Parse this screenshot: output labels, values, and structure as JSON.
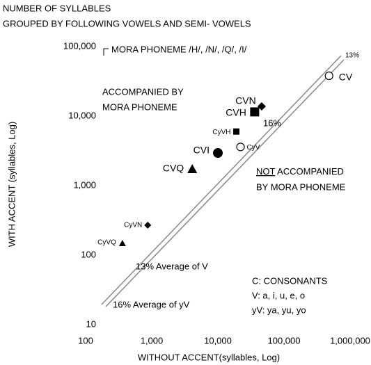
{
  "chart_data": {
    "type": "scatter",
    "title": [
      "NUMBER OF SYLLABLES",
      "GROUPED BY FOLLOWING VOWELS AND SEMI- VOWELS"
    ],
    "x_label": "WITHOUT ACCENT(syllables, Log)",
    "y_label": "WITH ACCENT (syllables, Log)",
    "log_x": true,
    "log_y": true,
    "xlim": [
      100,
      1000000
    ],
    "ylim": [
      10,
      100000
    ],
    "xticks": [
      100,
      {
        "value": 1000,
        "label": "1,000"
      },
      {
        "value": 10000,
        "label": "10,000"
      },
      {
        "value": 100000,
        "label": "100,000"
      },
      {
        "value": 1000000,
        "label": "1,000,000"
      }
    ],
    "yticks": [
      10,
      100,
      {
        "value": 1000,
        "label": "1,000"
      },
      {
        "value": 10000,
        "label": "10,000"
      },
      {
        "value": 100000,
        "label": "100,000"
      }
    ],
    "color": "#000000",
    "points": [
      {
        "label": "CV",
        "x": 480000,
        "y": 38000,
        "marker": "open-circle"
      },
      {
        "label": "CVN",
        "x": 46000,
        "y": 13800,
        "marker": "diamond"
      },
      {
        "label": "CVH",
        "x": 36000,
        "y": 11500,
        "marker": "big-square"
      },
      {
        "label": "CyVH",
        "x": 19000,
        "y": 6000,
        "marker": "square"
      },
      {
        "label": "CyV",
        "x": 22000,
        "y": 3600,
        "marker": "open-circle"
      },
      {
        "label": "CVI",
        "x": 10000,
        "y": 2950,
        "marker": "circle"
      },
      {
        "label": "CVQ",
        "x": 4100,
        "y": 1740,
        "marker": "triangle"
      },
      {
        "label": "CyVN",
        "x": 870,
        "y": 270,
        "marker": "small-diamond"
      },
      {
        "label": "CyVQ",
        "x": 360,
        "y": 148,
        "marker": "small-triangle"
      }
    ],
    "annotations": {
      "mora": "MORA PHONEME /H/, /N/, /Q/, /I/",
      "accompanied": [
        "ACCOMPANIED BY",
        "MORA PHONEME"
      ],
      "not": "NOT",
      "not_rest": " ACCOMPANIED",
      "not_line2": "BY MORA PHONEME",
      "line_13": "13%",
      "line_16": "16%",
      "avg_v": "13% Average of V",
      "avg_yv": "16%   Average of yV",
      "legend": [
        "C: CONSONANTS",
        "V: a, i, u, e, o",
        "yV: ya, yu, yo"
      ]
    }
  }
}
